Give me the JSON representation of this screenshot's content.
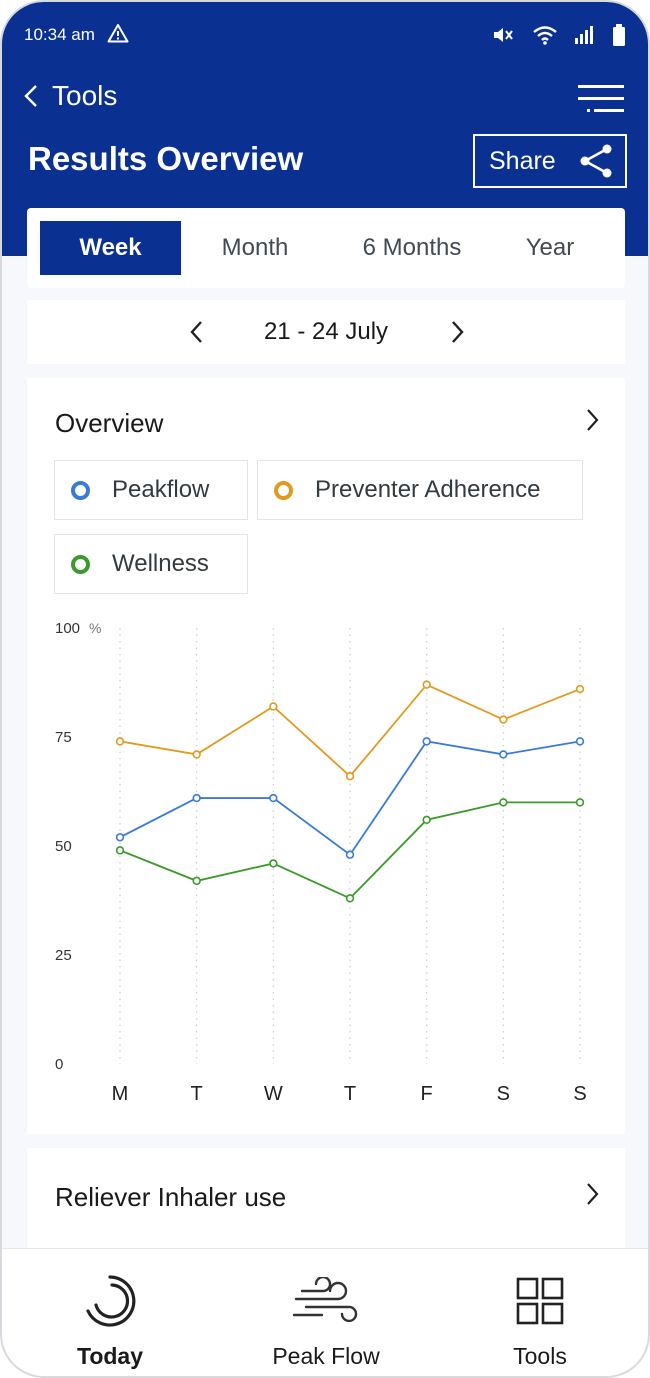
{
  "status_bar": {
    "time": "10:34 am"
  },
  "header": {
    "back_label": "Tools",
    "title": "Results Overview",
    "share_label": "Share"
  },
  "tabs": [
    {
      "label": "Week",
      "active": true
    },
    {
      "label": "Month",
      "active": false
    },
    {
      "label": "6 Months",
      "active": false
    },
    {
      "label": "Year",
      "active": false
    }
  ],
  "date_range": "21 - 24 July",
  "overview": {
    "title": "Overview",
    "legend": [
      {
        "label": "Peakflow",
        "color": "#3a7bd5"
      },
      {
        "label": "Preventer Adherence",
        "color": "#e09a1e"
      },
      {
        "label": "Wellness",
        "color": "#3a9a2a"
      }
    ]
  },
  "chart_data": {
    "type": "line",
    "categories": [
      "M",
      "T",
      "W",
      "T",
      "F",
      "S",
      "S"
    ],
    "ylim": [
      0,
      100
    ],
    "yticks": [
      0,
      25,
      50,
      75,
      100
    ],
    "y_unit": "%",
    "grid": "vertical-dotted",
    "series": [
      {
        "name": "Preventer Adherence",
        "color": "#e09a1e",
        "values": [
          74,
          71,
          82,
          66,
          87,
          79,
          86
        ]
      },
      {
        "name": "Peakflow",
        "color": "#3a7bd5",
        "values": [
          52,
          61,
          61,
          48,
          74,
          71,
          74
        ]
      },
      {
        "name": "Wellness",
        "color": "#3a9a2a",
        "values": [
          49,
          42,
          46,
          38,
          56,
          60,
          60
        ]
      }
    ]
  },
  "reliever": {
    "title": "Reliever Inhaler use"
  },
  "bottom_nav": [
    {
      "label": "Today",
      "icon": "today-icon",
      "active": true
    },
    {
      "label": "Peak Flow",
      "icon": "wind-icon",
      "active": false
    },
    {
      "label": "Tools",
      "icon": "grid-icon",
      "active": false
    }
  ]
}
